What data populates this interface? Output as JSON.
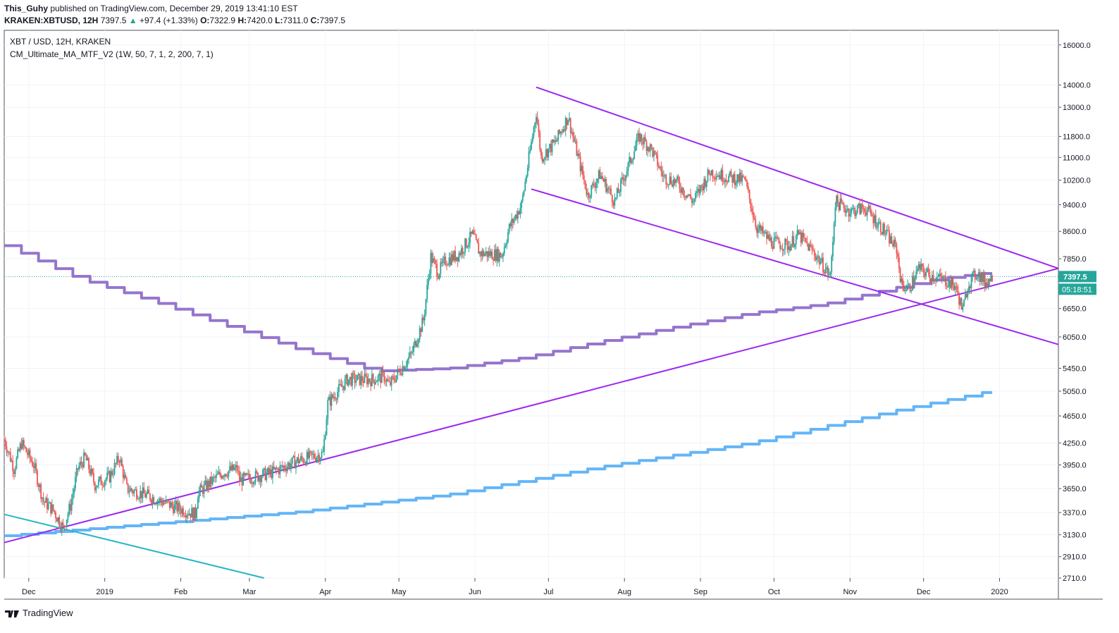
{
  "header": {
    "author": "This_Guhy",
    "published_text": "published on TradingView.com, December 29, 2019 13:41:10 EST",
    "symbol": "KRAKEN:XBTUSD, 12H",
    "last": "7397.5",
    "change": "+97.4 (+1.33%)",
    "o_label": "O:",
    "o_value": "7322.9",
    "h_label": "H:",
    "h_value": "7420.0",
    "l_label": "L:",
    "l_value": "7311.0",
    "c_label": "C:",
    "c_value": "7397.5"
  },
  "legend": {
    "series_title": "XBT / USD, 12H, KRAKEN",
    "indicator": "CM_Ultimate_MA_MTF_V2 (1W, 50, 7, 1, 2, 200, 7, 1)"
  },
  "price_badge": {
    "value": "7397.5",
    "countdown": "05:18:51",
    "color": "#26a69a"
  },
  "footer": {
    "brand": "TradingView"
  },
  "colors": {
    "up": "#26a69a",
    "down": "#ef5350",
    "trendline": "#9c27f0",
    "ma_50w": "#9575cd",
    "ma_200w": "#64b5f6",
    "support_line": "#26b6c6"
  },
  "chart_data": {
    "type": "candlestick",
    "title": "XBT / USD, 12H, KRAKEN",
    "scale": "log",
    "ylim": [
      2710,
      16800
    ],
    "y_ticks": [
      "16000.0",
      "14000.0",
      "13000.0",
      "11800.0",
      "11000.0",
      "10200.0",
      "9400.0",
      "8600.0",
      "7850.0",
      "6650.0",
      "6050.0",
      "5450.0",
      "5050.0",
      "4650.0",
      "4250.0",
      "3950.0",
      "3650.0",
      "3370.0",
      "3130.0",
      "2910.0",
      "2710.0"
    ],
    "x_ticks": [
      "Dec",
      "2019",
      "Feb",
      "Mar",
      "Apr",
      "May",
      "Jun",
      "Jul",
      "Aug",
      "Sep",
      "Oct",
      "Nov",
      "Dec",
      "2020"
    ],
    "xlim": [
      "2018-11-21",
      "2020-01-25"
    ],
    "grid": true,
    "current_price": 7397.5,
    "price_path": [
      [
        "2018-11-21",
        4300
      ],
      [
        "2018-11-25",
        3900
      ],
      [
        "2018-11-28",
        4250
      ],
      [
        "2018-12-03",
        3950
      ],
      [
        "2018-12-07",
        3500
      ],
      [
        "2018-12-11",
        3400
      ],
      [
        "2018-12-15",
        3200
      ],
      [
        "2018-12-18",
        3450
      ],
      [
        "2018-12-21",
        3900
      ],
      [
        "2018-12-24",
        4050
      ],
      [
        "2018-12-28",
        3700
      ],
      [
        "2019-01-03",
        3800
      ],
      [
        "2019-01-07",
        4050
      ],
      [
        "2019-01-10",
        3650
      ],
      [
        "2019-01-20",
        3550
      ],
      [
        "2019-01-28",
        3450
      ],
      [
        "2019-02-07",
        3350
      ],
      [
        "2019-02-08",
        3600
      ],
      [
        "2019-02-18",
        3850
      ],
      [
        "2019-02-24",
        3900
      ],
      [
        "2019-02-25",
        3750
      ],
      [
        "2019-03-10",
        3850
      ],
      [
        "2019-03-20",
        4000
      ],
      [
        "2019-03-31",
        4100
      ],
      [
        "2019-04-02",
        4850
      ],
      [
        "2019-04-10",
        5250
      ],
      [
        "2019-04-20",
        5250
      ],
      [
        "2019-04-25",
        5300
      ],
      [
        "2019-04-27",
        5150
      ],
      [
        "2019-05-06",
        5700
      ],
      [
        "2019-05-11",
        6400
      ],
      [
        "2019-05-14",
        7900
      ],
      [
        "2019-05-17",
        7500
      ],
      [
        "2019-05-20",
        7800
      ],
      [
        "2019-05-25",
        7950
      ],
      [
        "2019-05-31",
        8500
      ],
      [
        "2019-06-03",
        8000
      ],
      [
        "2019-06-12",
        7950
      ],
      [
        "2019-06-15",
        8700
      ],
      [
        "2019-06-20",
        9400
      ],
      [
        "2019-06-22",
        10400
      ],
      [
        "2019-06-26",
        12800
      ],
      [
        "2019-06-28",
        11000
      ],
      [
        "2019-07-04",
        11600
      ],
      [
        "2019-07-09",
        12600
      ],
      [
        "2019-07-12",
        11400
      ],
      [
        "2019-07-17",
        9700
      ],
      [
        "2019-07-22",
        10400
      ],
      [
        "2019-07-28",
        9500
      ],
      [
        "2019-08-03",
        10800
      ],
      [
        "2019-08-07",
        11800
      ],
      [
        "2019-08-12",
        11300
      ],
      [
        "2019-08-17",
        10300
      ],
      [
        "2019-08-22",
        10150
      ],
      [
        "2019-08-29",
        9500
      ],
      [
        "2019-09-05",
        10500
      ],
      [
        "2019-09-12",
        10300
      ],
      [
        "2019-09-19",
        10200
      ],
      [
        "2019-09-24",
        8700
      ],
      [
        "2019-09-30",
        8300
      ],
      [
        "2019-10-07",
        8200
      ],
      [
        "2019-10-11",
        8500
      ],
      [
        "2019-10-18",
        7950
      ],
      [
        "2019-10-24",
        7400
      ],
      [
        "2019-10-26",
        9500
      ],
      [
        "2019-11-01",
        9200
      ],
      [
        "2019-11-07",
        9300
      ],
      [
        "2019-11-14",
        8700
      ],
      [
        "2019-11-20",
        8100
      ],
      [
        "2019-11-22",
        7200
      ],
      [
        "2019-11-25",
        7100
      ],
      [
        "2019-11-29",
        7600
      ],
      [
        "2019-12-05",
        7400
      ],
      [
        "2019-12-10",
        7300
      ],
      [
        "2019-12-14",
        7150
      ],
      [
        "2019-12-17",
        6600
      ],
      [
        "2019-12-19",
        7200
      ],
      [
        "2019-12-23",
        7500
      ],
      [
        "2019-12-26",
        7250
      ],
      [
        "2019-12-29",
        7397.5
      ]
    ],
    "moving_averages": [
      {
        "name": "50W",
        "color": "#9575cd",
        "values": [
          [
            "2018-11-21",
            8200
          ],
          [
            "2018-12-21",
            7350
          ],
          [
            "2019-01-21",
            6800
          ],
          [
            "2019-02-21",
            6250
          ],
          [
            "2019-03-21",
            5800
          ],
          [
            "2019-04-21",
            5400
          ],
          [
            "2019-05-21",
            5450
          ],
          [
            "2019-06-21",
            5650
          ],
          [
            "2019-07-21",
            5950
          ],
          [
            "2019-08-21",
            6250
          ],
          [
            "2019-09-21",
            6550
          ],
          [
            "2019-10-21",
            6750
          ],
          [
            "2019-11-21",
            7150
          ],
          [
            "2019-12-07",
            7350
          ],
          [
            "2019-12-29",
            7500
          ]
        ]
      },
      {
        "name": "200W",
        "color": "#64b5f6",
        "values": [
          [
            "2018-11-21",
            3120
          ],
          [
            "2019-01-21",
            3250
          ],
          [
            "2019-03-21",
            3380
          ],
          [
            "2019-05-21",
            3580
          ],
          [
            "2019-07-21",
            3920
          ],
          [
            "2019-09-21",
            4250
          ],
          [
            "2019-11-21",
            4750
          ],
          [
            "2019-12-29",
            5060
          ]
        ]
      }
    ],
    "trendlines": [
      {
        "name": "upper-resistance",
        "from": [
          "2019-06-26",
          13900
        ],
        "to": [
          "2020-01-25",
          7600
        ]
      },
      {
        "name": "lower-channel",
        "from": [
          "2019-06-24",
          9900
        ],
        "to": [
          "2020-01-25",
          5900
        ]
      },
      {
        "name": "rising-support",
        "from": [
          "2018-11-21",
          3050
        ],
        "to": [
          "2020-01-25",
          7600
        ]
      },
      {
        "name": "old-downtrend",
        "from": [
          "2018-11-21",
          3350
        ],
        "to": [
          "2019-03-07",
          2710
        ]
      }
    ]
  }
}
